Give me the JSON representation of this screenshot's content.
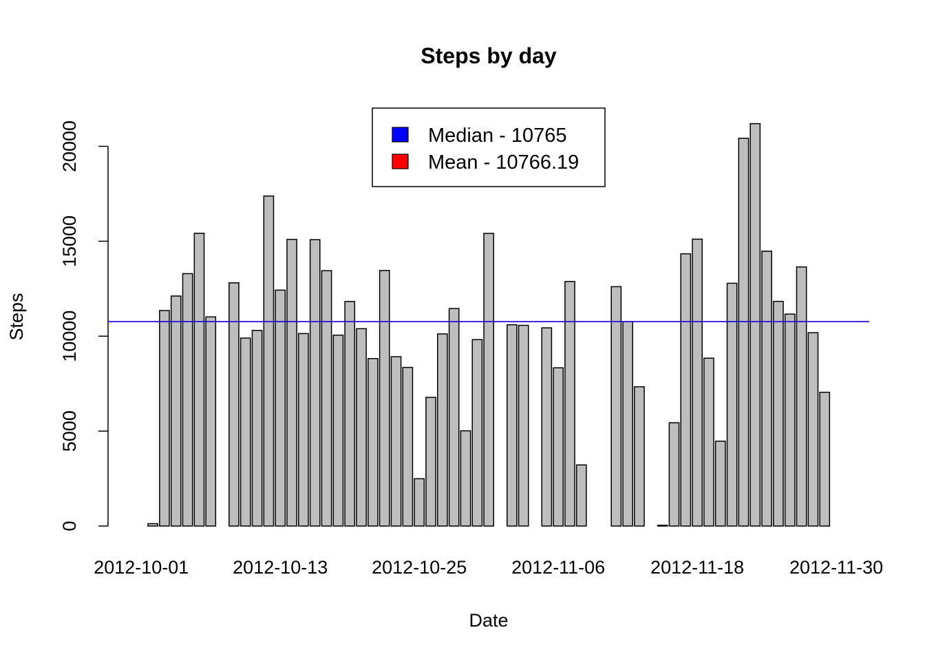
{
  "chart_data": {
    "type": "bar",
    "title": "Steps by day",
    "xlabel": "Date",
    "ylabel": "Steps",
    "ylim": [
      0,
      21500
    ],
    "y_ticks": [
      0,
      5000,
      10000,
      15000,
      20000
    ],
    "x_tick_labels": [
      "2012-10-01",
      "2012-10-13",
      "2012-10-25",
      "2012-11-06",
      "2012-11-18",
      "2012-11-30"
    ],
    "categories": [
      "2012-10-02",
      "2012-10-03",
      "2012-10-04",
      "2012-10-05",
      "2012-10-06",
      "2012-10-07",
      "2012-10-09",
      "2012-10-10",
      "2012-10-11",
      "2012-10-12",
      "2012-10-13",
      "2012-10-14",
      "2012-10-15",
      "2012-10-16",
      "2012-10-17",
      "2012-10-18",
      "2012-10-19",
      "2012-10-20",
      "2012-10-21",
      "2012-10-22",
      "2012-10-23",
      "2012-10-24",
      "2012-10-25",
      "2012-10-26",
      "2012-10-27",
      "2012-10-28",
      "2012-10-29",
      "2012-10-30",
      "2012-10-31",
      "2012-11-02",
      "2012-11-03",
      "2012-11-05",
      "2012-11-06",
      "2012-11-07",
      "2012-11-08",
      "2012-11-11",
      "2012-11-12",
      "2012-11-13",
      "2012-11-15",
      "2012-11-16",
      "2012-11-17",
      "2012-11-18",
      "2012-11-19",
      "2012-11-20",
      "2012-11-21",
      "2012-11-22",
      "2012-11-23",
      "2012-11-24",
      "2012-11-25",
      "2012-11-26",
      "2012-11-27",
      "2012-11-28",
      "2012-11-29"
    ],
    "values": [
      126,
      11352,
      12116,
      13294,
      15420,
      11015,
      12811,
      9900,
      10304,
      17382,
      12426,
      15098,
      10139,
      15084,
      13452,
      10056,
      11829,
      10395,
      8821,
      13460,
      8918,
      8355,
      2492,
      6778,
      10119,
      11458,
      5018,
      9819,
      15414,
      10600,
      10571,
      10439,
      8334,
      12883,
      3219,
      12608,
      10765,
      7336,
      41,
      5441,
      14339,
      15110,
      8841,
      4472,
      12787,
      20427,
      21194,
      14478,
      11834,
      11162,
      13646,
      10183,
      7047
    ],
    "bar_color": "#bebebe",
    "lines": [
      {
        "name": "Median",
        "value": 10765,
        "color": "#0000ff"
      },
      {
        "name": "Mean",
        "value": 10766.19,
        "color": "#ff0000"
      }
    ],
    "legend": {
      "placement": "top-center",
      "entries": [
        {
          "label": "Median - 10765",
          "color": "#0000ff"
        },
        {
          "label": "Mean - 10766.19",
          "color": "#ff0000"
        }
      ]
    },
    "grid": false
  }
}
